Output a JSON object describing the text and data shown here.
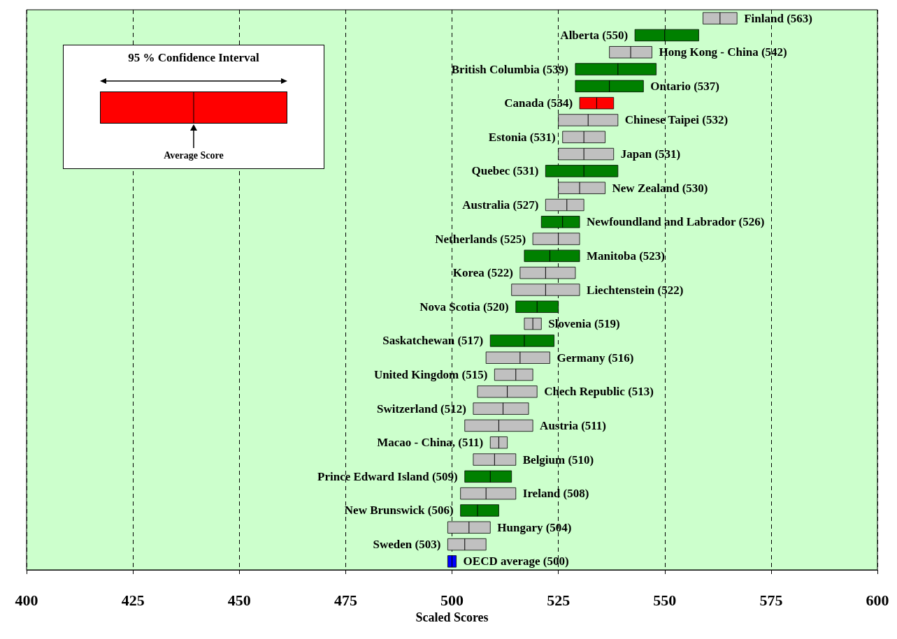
{
  "chart_data": {
    "type": "box",
    "orientation": "horizontal",
    "xlabel": "Scaled Scores",
    "categories": [
      "Finland (563)",
      "Alberta (550)",
      "Hong Kong - China (542)",
      "British Columbia (539)",
      "Ontario (537)",
      "Canada (534)",
      "Chinese Taipei (532)",
      "Estonia (531)",
      "Japan (531)",
      "Quebec (531)",
      "New Zealand (530)",
      "Australia (527)",
      "Newfoundland and Labrador (526)",
      "Netherlands (525)",
      "Manitoba (523)",
      "Korea (522)",
      "Liechtenstein (522)",
      "Nova Scotia (520)",
      "Slovenia (519)",
      "Saskatchewan (517)",
      "Germany (516)",
      "United Kingdom (515)",
      "Chech Republic (513)",
      "Switzerland (512)",
      "Austria (511)",
      "Macao - China, (511)",
      "Belgium (510)",
      "Prince Edward Island (509)",
      "Ireland (508)",
      "New Brunswick (506)",
      "Hungary (504)",
      "Sweden (503)",
      "OECD average (500)"
    ],
    "boxes": [
      {
        "low": 559,
        "q1": 559,
        "median": 563,
        "q3": 567,
        "high": 567
      },
      {
        "low": 543,
        "q1": 543,
        "median": 550,
        "q3": 558,
        "high": 558
      },
      {
        "low": 537,
        "q1": 537,
        "median": 542,
        "q3": 547,
        "high": 547
      },
      {
        "low": 529,
        "q1": 529,
        "median": 539,
        "q3": 548,
        "high": 548
      },
      {
        "low": 529,
        "q1": 529,
        "median": 537,
        "q3": 545,
        "high": 545
      },
      {
        "low": 530,
        "q1": 530,
        "median": 534,
        "q3": 538,
        "high": 538
      },
      {
        "low": 525,
        "q1": 525,
        "median": 532,
        "q3": 539,
        "high": 539
      },
      {
        "low": 526,
        "q1": 526,
        "median": 531,
        "q3": 536,
        "high": 536
      },
      {
        "low": 525,
        "q1": 525,
        "median": 531,
        "q3": 538,
        "high": 538
      },
      {
        "low": 522,
        "q1": 522,
        "median": 531,
        "q3": 539,
        "high": 539
      },
      {
        "low": 525,
        "q1": 525,
        "median": 530,
        "q3": 536,
        "high": 536
      },
      {
        "low": 522,
        "q1": 522,
        "median": 527,
        "q3": 531,
        "high": 531
      },
      {
        "low": 521,
        "q1": 521,
        "median": 526,
        "q3": 530,
        "high": 530
      },
      {
        "low": 519,
        "q1": 519,
        "median": 525,
        "q3": 530,
        "high": 530
      },
      {
        "low": 517,
        "q1": 517,
        "median": 523,
        "q3": 530,
        "high": 530
      },
      {
        "low": 516,
        "q1": 516,
        "median": 522,
        "q3": 529,
        "high": 529
      },
      {
        "low": 514,
        "q1": 514,
        "median": 522,
        "q3": 530,
        "high": 530
      },
      {
        "low": 515,
        "q1": 515,
        "median": 520,
        "q3": 525,
        "high": 525
      },
      {
        "low": 517,
        "q1": 517,
        "median": 519,
        "q3": 521,
        "high": 521
      },
      {
        "low": 509,
        "q1": 509,
        "median": 517,
        "q3": 524,
        "high": 524
      },
      {
        "low": 508,
        "q1": 508,
        "median": 516,
        "q3": 523,
        "high": 523
      },
      {
        "low": 510,
        "q1": 510,
        "median": 515,
        "q3": 519,
        "high": 519
      },
      {
        "low": 506,
        "q1": 506,
        "median": 513,
        "q3": 520,
        "high": 520
      },
      {
        "low": 505,
        "q1": 505,
        "median": 512,
        "q3": 518,
        "high": 518
      },
      {
        "low": 503,
        "q1": 503,
        "median": 511,
        "q3": 519,
        "high": 519
      },
      {
        "low": 509,
        "q1": 509,
        "median": 511,
        "q3": 513,
        "high": 513
      },
      {
        "low": 505,
        "q1": 505,
        "median": 510,
        "q3": 515,
        "high": 515
      },
      {
        "low": 503,
        "q1": 503,
        "median": 509,
        "q3": 514,
        "high": 514
      },
      {
        "low": 502,
        "q1": 502,
        "median": 508,
        "q3": 515,
        "high": 515
      },
      {
        "low": 502,
        "q1": 502,
        "median": 506,
        "q3": 511,
        "high": 511
      },
      {
        "low": 499,
        "q1": 499,
        "median": 504,
        "q3": 509,
        "high": 509
      },
      {
        "low": 499,
        "q1": 499,
        "median": 503,
        "q3": 508,
        "high": 508
      },
      {
        "low": 499,
        "q1": 499,
        "median": 500,
        "q3": 501,
        "high": 501
      }
    ],
    "colors": [
      "#c0c0c0",
      "#008000",
      "#c0c0c0",
      "#008000",
      "#008000",
      "#ff0000",
      "#c0c0c0",
      "#c0c0c0",
      "#c0c0c0",
      "#008000",
      "#c0c0c0",
      "#c0c0c0",
      "#008000",
      "#c0c0c0",
      "#008000",
      "#c0c0c0",
      "#c0c0c0",
      "#008000",
      "#c0c0c0",
      "#008000",
      "#c0c0c0",
      "#c0c0c0",
      "#c0c0c0",
      "#c0c0c0",
      "#c0c0c0",
      "#c0c0c0",
      "#c0c0c0",
      "#008000",
      "#c0c0c0",
      "#008000",
      "#c0c0c0",
      "#c0c0c0",
      "#0000ff"
    ],
    "xlim": [
      400,
      600
    ],
    "xticks": [
      400,
      425,
      450,
      475,
      500,
      525,
      550,
      575,
      600
    ],
    "grid": "x",
    "tick_labels": "x",
    "annotations": [
      "95 % Confidence Interval",
      "Average Score"
    ]
  }
}
